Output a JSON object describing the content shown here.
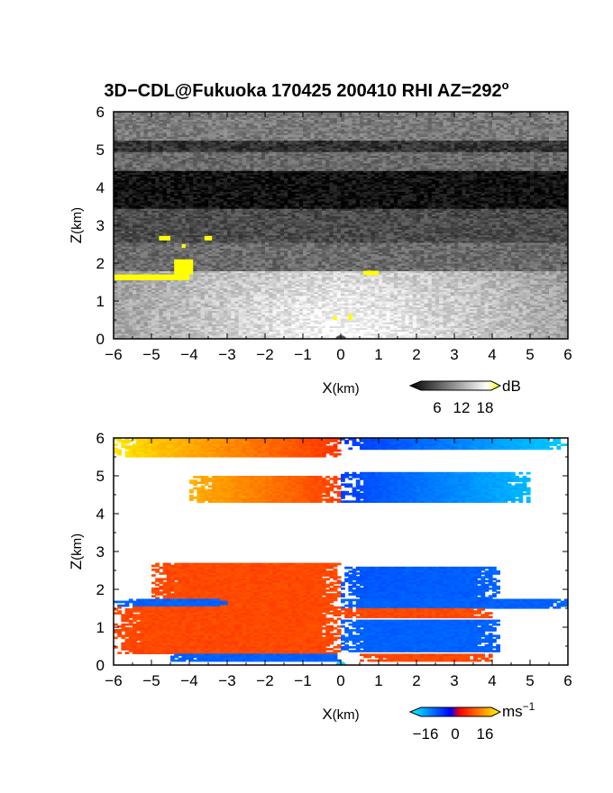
{
  "title": {
    "main": "3D−CDL@Fukuoka 170425 200410 RHI AZ=292",
    "deg": "o"
  },
  "chart_data": [
    {
      "type": "heatmap",
      "panel": "reflectivity",
      "xlabel_main": "X",
      "xlabel_unit": "(km)",
      "ylabel_main": "Z",
      "ylabel_unit": "(km)",
      "xlim": [
        -6,
        6
      ],
      "ylim": [
        0,
        6
      ],
      "xticks": [
        "−6",
        "−5",
        "−4",
        "−3",
        "−2",
        "−1",
        "0",
        "1",
        "2",
        "3",
        "4",
        "5",
        "6"
      ],
      "yticks": [
        "0",
        "1",
        "2",
        "3",
        "4",
        "5",
        "6"
      ],
      "colorbar": {
        "ticks": [
          "6",
          "12",
          "18"
        ],
        "unit": "dB",
        "colors": [
          "#000000",
          "#ffffff",
          "#ffff00"
        ]
      },
      "layers": [
        {
          "zmin": 5.2,
          "zmax": 6.0,
          "level": 0.48
        },
        {
          "zmin": 4.9,
          "zmax": 5.2,
          "level": 0.2
        },
        {
          "zmin": 4.4,
          "zmax": 4.9,
          "level": 0.42
        },
        {
          "zmin": 3.4,
          "zmax": 4.4,
          "level": 0.07
        },
        {
          "zmin": 2.5,
          "zmax": 3.4,
          "level": 0.3
        },
        {
          "zmin": 1.8,
          "zmax": 2.5,
          "level": 0.42
        },
        {
          "zmin": 0.0,
          "zmax": 1.8,
          "level": 0.6
        }
      ],
      "highlights": [
        {
          "x0": -6.0,
          "x1": -4.0,
          "z0": 1.55,
          "z1": 1.7
        },
        {
          "x0": -4.4,
          "x1": -3.9,
          "z0": 1.7,
          "z1": 2.1
        },
        {
          "x0": -4.8,
          "x1": -4.5,
          "z0": 2.6,
          "z1": 2.72
        },
        {
          "x0": -3.6,
          "x1": -3.4,
          "z0": 2.6,
          "z1": 2.72
        },
        {
          "x0": -4.2,
          "x1": -4.1,
          "z0": 2.4,
          "z1": 2.5
        },
        {
          "x0": 0.6,
          "x1": 1.0,
          "z0": 1.68,
          "z1": 1.8
        },
        {
          "x0": -0.2,
          "x1": -0.1,
          "z0": 0.5,
          "z1": 0.6
        },
        {
          "x0": 0.2,
          "x1": 0.3,
          "z0": 0.5,
          "z1": 0.65
        }
      ]
    },
    {
      "type": "heatmap",
      "panel": "doppler_velocity",
      "xlabel_main": "X",
      "xlabel_unit": "(km)",
      "ylabel_main": "Z",
      "ylabel_unit": "(km)",
      "xlim": [
        -6,
        6
      ],
      "ylim": [
        0,
        6
      ],
      "xticks": [
        "−6",
        "−5",
        "−4",
        "−3",
        "−2",
        "−1",
        "0",
        "1",
        "2",
        "3",
        "4",
        "5",
        "6"
      ],
      "yticks": [
        "0",
        "1",
        "2",
        "3",
        "4",
        "5",
        "6"
      ],
      "colorbar": {
        "ticks": [
          "−16",
          "0",
          "16"
        ],
        "unit": "ms",
        "unit_sup": "−1",
        "colors": [
          "#00ffff",
          "#0000ff",
          "#ff0000",
          "#ffff00"
        ]
      },
      "layers": [
        {
          "xmin": -6.0,
          "xmax": 0.0,
          "zmin": 5.5,
          "zmax": 6.0,
          "vmin": 16,
          "vmax": 2
        },
        {
          "xmin": 0.0,
          "xmax": 6.0,
          "zmin": 5.7,
          "zmax": 6.0,
          "vmin": -2,
          "vmax": -16
        },
        {
          "xmin": -4.0,
          "xmax": 0.0,
          "zmin": 4.3,
          "zmax": 5.0,
          "vmin": 12,
          "vmax": 3
        },
        {
          "xmin": 0.0,
          "xmax": 5.0,
          "zmin": 4.3,
          "zmax": 5.1,
          "vmin": -3,
          "vmax": -14
        },
        {
          "xmin": -5.0,
          "xmax": 0.0,
          "zmin": 1.4,
          "zmax": 2.7,
          "vmin": 4,
          "vmax": 4
        },
        {
          "xmin": 0.0,
          "xmax": 4.2,
          "zmin": 1.7,
          "zmax": 2.6,
          "vmin": -5,
          "vmax": -6
        },
        {
          "xmin": -6.0,
          "xmax": -3.0,
          "zmin": 1.55,
          "zmax": 1.75,
          "vmin": -6,
          "vmax": -6
        },
        {
          "xmin": 0.0,
          "xmax": 6.0,
          "zmin": 1.5,
          "zmax": 1.75,
          "vmin": -6,
          "vmax": -6
        },
        {
          "xmin": -6.0,
          "xmax": 0.0,
          "zmin": 0.3,
          "zmax": 1.55,
          "vmin": 4,
          "vmax": 4
        },
        {
          "xmin": 0.0,
          "xmax": 4.0,
          "zmin": 1.25,
          "zmax": 1.5,
          "vmin": 4,
          "vmax": 4
        },
        {
          "xmin": 0.0,
          "xmax": 4.2,
          "zmin": 0.35,
          "zmax": 1.2,
          "vmin": -6,
          "vmax": -6
        },
        {
          "xmin": -4.5,
          "xmax": 0.0,
          "zmin": 0.1,
          "zmax": 0.3,
          "vmin": -6,
          "vmax": -6
        },
        {
          "xmin": 0.5,
          "xmax": 4.0,
          "zmin": 0.1,
          "zmax": 0.3,
          "vmin": 4,
          "vmax": 4
        }
      ]
    }
  ]
}
